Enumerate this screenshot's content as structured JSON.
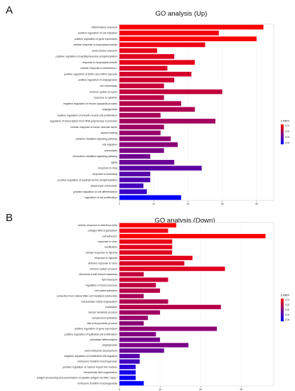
{
  "panels": [
    {
      "letter": "A"
    },
    {
      "letter": "B"
    }
  ],
  "chart_data": [
    {
      "type": "bar",
      "orientation": "horizontal",
      "title": "GO analysis (Up)",
      "legend_title": "p.adjust",
      "legend_ticks": [
        "0.01",
        "0.02",
        "0.03",
        "0.04"
      ],
      "xlim": [
        0,
        45
      ],
      "xticks": [
        0,
        10,
        20,
        30,
        40
      ],
      "color_low": "#ff0000",
      "color_high": "#0000ff",
      "legend_placement": "right",
      "categories": [
        "inflammatory response",
        "positive regulation of cell migration",
        "positive regulation of gene expression",
        "cellular response to lipopolysaccharide",
        "acute-phase response",
        "positive regulation of peptidyl-tyrosine phosphorylation",
        "response to lipopolysaccharide",
        "cellular response to interleukin-1",
        "positive regulation of ERK1 and ERK2 cascade",
        "positive regulation of angiogenesis",
        "cell chemotaxis",
        "immune system process",
        "response to cytokine",
        "negative regulation of neuron apoptotic process",
        "angiogenesis",
        "positive regulation of smooth muscle cell proliferation",
        "regulation of transcription from RNA polymerase II promoter",
        "cellular response to tumor necrosis factor",
        "wound healing",
        "cytokine-mediated signaling pathway",
        "cell migration",
        "chemotaxis",
        "chemokine-mediated signaling pathway",
        "aging",
        "response to drug",
        "response to wounding",
        "positive regulation of peptidyl-serine phosphorylation",
        "lymphocyte chemotaxis",
        "positive regulation of cell differentiation",
        "regulation of cell proliferation"
      ],
      "values": [
        42,
        29,
        40,
        25,
        11,
        16,
        22,
        14,
        21,
        16,
        13,
        30,
        13,
        18,
        22,
        12,
        28,
        13,
        12,
        15,
        17,
        13,
        9,
        16,
        24,
        9,
        9,
        7,
        8,
        18
      ],
      "p_adjust": [
        0.005,
        0.006,
        0.004,
        0.007,
        0.008,
        0.009,
        0.008,
        0.01,
        0.011,
        0.012,
        0.013,
        0.014,
        0.015,
        0.016,
        0.017,
        0.018,
        0.019,
        0.02,
        0.021,
        0.022,
        0.023,
        0.025,
        0.027,
        0.028,
        0.03,
        0.031,
        0.032,
        0.034,
        0.036,
        0.045
      ]
    },
    {
      "type": "bar",
      "orientation": "horizontal",
      "title": "GO analysis (Down)",
      "legend_title": "p.adjust",
      "legend_ticks": [
        "0.01",
        "0.02",
        "0.03",
        "0.04",
        "0.05"
      ],
      "xlim": [
        0,
        38
      ],
      "xticks": [
        0,
        10,
        20,
        30
      ],
      "color_low": "#ff0000",
      "color_high": "#0000ff",
      "legend_placement": "right",
      "categories": [
        "cellular response to interferon-beta",
        "collagen fibril organization",
        "cell adhesion",
        "response to virus",
        "ossification",
        "cellular response to hypoxia",
        "response to hypoxia",
        "defense response to virus",
        "immune system process",
        "ribosomal small subunit assembly",
        "lipid transport",
        "regulation of blood pressure",
        "cell-matrix adhesion",
        "protection from natural killer cell mediated cytotoxicity",
        "extracellular matrix organization",
        "translation",
        "steroid metabolic process",
        "complement activation",
        "sterol biosynthetic process",
        "positive regulation of gene expression",
        "positive regulation of epithelial cell proliferation",
        "osteoblast differentiation",
        "angiogenesis",
        "post-embryonic development",
        "negative regulation of endothelial cell migration",
        "embryonic forelimb morphogenesis",
        "positive regulation of catenin import into nucleus",
        "extracellular fibril organization",
        "antigen processing and presentation of peptide antigen via MHC class I",
        "embryonic forelimb morphogenesis"
      ],
      "values": [
        14,
        12,
        36,
        13,
        13,
        13,
        18,
        16,
        26,
        6,
        12,
        9,
        10,
        6,
        12,
        25,
        10,
        7,
        6,
        24,
        9,
        10,
        17,
        11,
        5,
        5,
        4,
        4,
        4,
        6
      ],
      "p_adjust": [
        0.005,
        0.007,
        0.004,
        0.008,
        0.009,
        0.01,
        0.009,
        0.011,
        0.01,
        0.015,
        0.014,
        0.016,
        0.018,
        0.02,
        0.019,
        0.018,
        0.022,
        0.024,
        0.026,
        0.025,
        0.028,
        0.03,
        0.029,
        0.032,
        0.036,
        0.04,
        0.045,
        0.048,
        0.05,
        0.052
      ]
    }
  ]
}
